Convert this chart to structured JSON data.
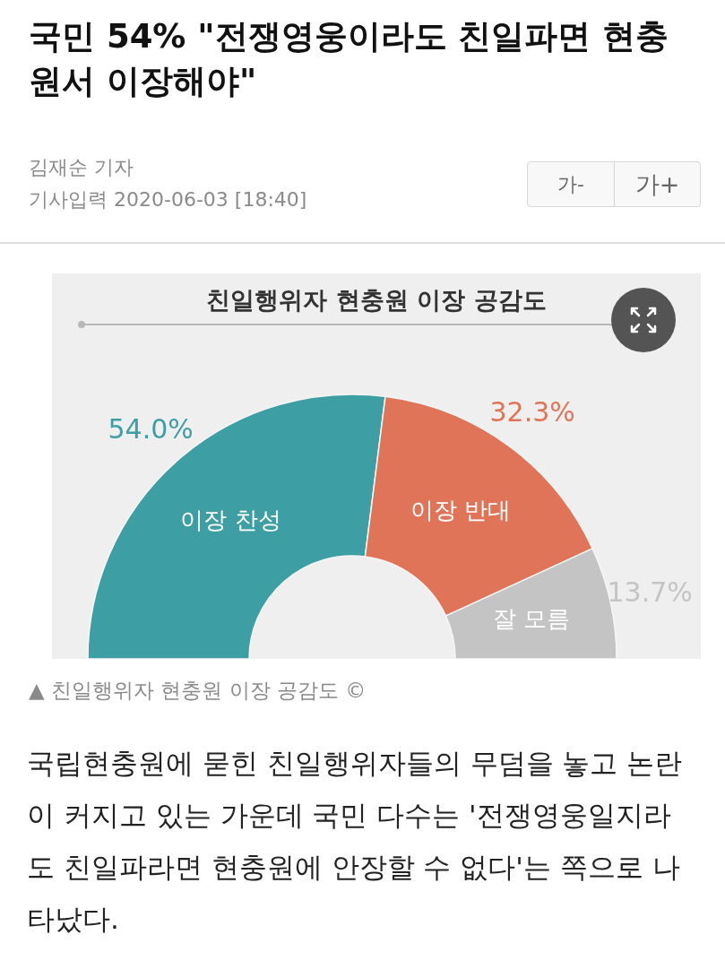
{
  "chart_data": {
    "type": "donut",
    "title": "국민 54% \"전쟁영웅이라도 친일파면 현충원서 이장해야\"",
    "subtitle": "친일행위자 현충원 이장 공감도",
    "categories": [
      "이장 찬성",
      "이장 반대",
      "잘 모름"
    ],
    "values": [
      54.0,
      32.3,
      13.7
    ],
    "colors": [
      "#3d9ea3",
      "#e07458",
      "#c4c4c4"
    ],
    "value_labels": [
      "54.0%",
      "32.3%",
      "13.7%"
    ],
    "annotations": [
      "김재순 기자",
      "기사입력 2020-06-03 [18:40]",
      "가-",
      "가+",
      "▲ 친일행위자 현충원 이장 공감도 ©",
      "국립현충원에 묻힌 친일행위자들의 무덤을 놓고 논란이 커지고 있는 가운데 국민 다수는 '전쟁영웅일지라도 친일파라면 현충원에 안장할 수 없다'는 쪽으로 나타났다."
    ]
  }
}
